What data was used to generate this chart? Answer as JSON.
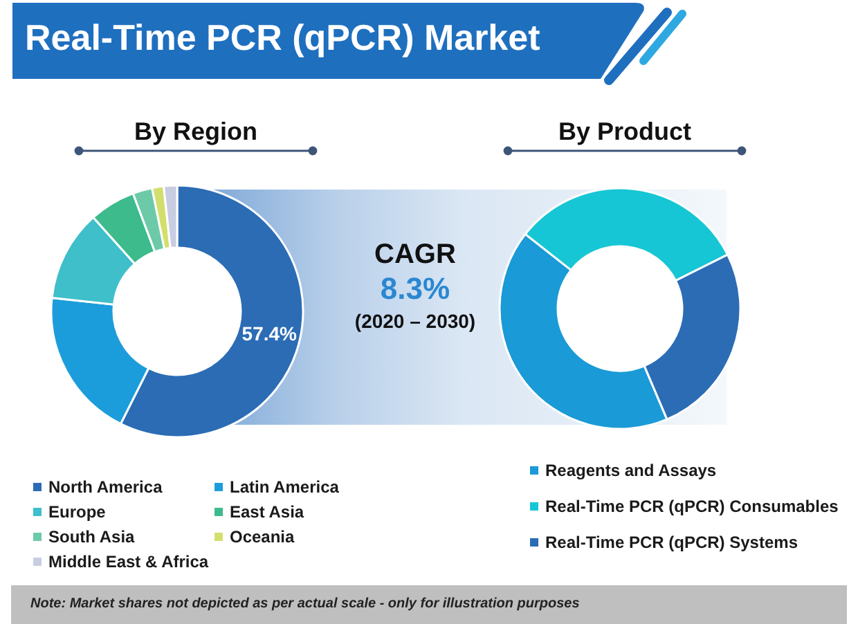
{
  "chart_data": [
    {
      "type": "other",
      "title": "Real-Time PCR (qPCR) Market"
    },
    {
      "type": "donut",
      "title": "By Region",
      "categories": [
        "North America",
        "Latin America",
        "Europe",
        "East Asia",
        "South Asia",
        "Oceania",
        "Middle East & Africa"
      ],
      "values": [
        57.4,
        19.3,
        11.7,
        5.9,
        2.5,
        1.5,
        1.7
      ],
      "colors": [
        "#2b6cb5",
        "#1c9ddb",
        "#3ebfca",
        "#3dbb8c",
        "#6ccaa9",
        "#d3df6c",
        "#c9cde2"
      ],
      "value_labels": [
        "57.4%",
        null,
        null,
        null,
        null,
        null,
        null
      ],
      "legend": "bottom"
    },
    {
      "type": "other",
      "title": "CAGR",
      "annotations": [
        "8.3%",
        "(2020 – 2030)"
      ]
    },
    {
      "type": "donut",
      "title": "By Product",
      "categories": [
        "Reagents and Assays",
        "Real-Time PCR (qPCR) Consumables",
        "Real-Time PCR (qPCR) Systems"
      ],
      "values": [
        42,
        32,
        26
      ],
      "colors": [
        "#1a9ad6",
        "#17c6d4",
        "#2b6cb5"
      ],
      "legend": "bottom"
    },
    {
      "type": "other",
      "annotations": [
        "Note: Market shares not depicted as per actual scale - only for illustration purposes"
      ]
    }
  ]
}
